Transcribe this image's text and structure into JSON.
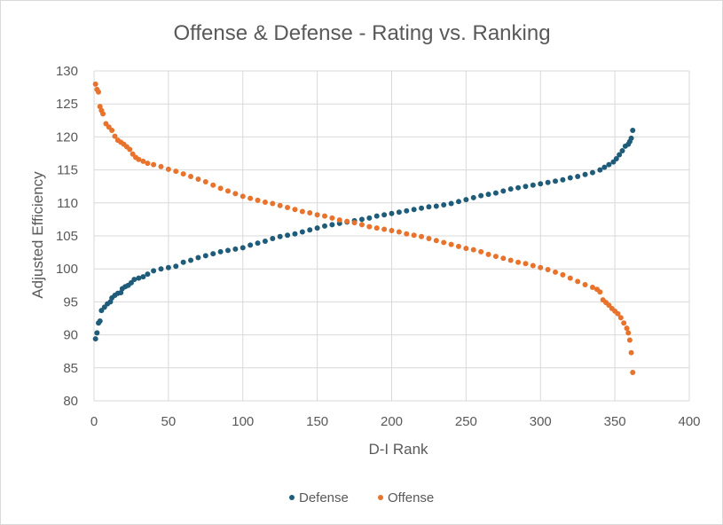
{
  "chart_data": {
    "type": "scatter",
    "title": "Offense & Defense - Rating vs. Ranking",
    "xlabel": "D-I Rank",
    "ylabel": "Adjusted Efficiency",
    "xlim": [
      0,
      400
    ],
    "ylim": [
      80,
      130
    ],
    "x_ticks": [
      0,
      50,
      100,
      150,
      200,
      250,
      300,
      350,
      400
    ],
    "y_ticks": [
      80,
      85,
      90,
      95,
      100,
      105,
      110,
      115,
      120,
      125,
      130
    ],
    "grid": true,
    "legend_position": "bottom",
    "series": [
      {
        "name": "Defense",
        "color": "#1f5c7a",
        "points": [
          [
            1,
            89.4
          ],
          [
            2,
            90.3
          ],
          [
            3,
            91.8
          ],
          [
            4,
            92.1
          ],
          [
            5,
            93.7
          ],
          [
            7,
            94.2
          ],
          [
            9,
            94.7
          ],
          [
            11,
            95.0
          ],
          [
            12,
            95.6
          ],
          [
            14,
            96.0
          ],
          [
            16,
            96.3
          ],
          [
            18,
            96.4
          ],
          [
            19,
            97.0
          ],
          [
            21,
            97.3
          ],
          [
            23,
            97.5
          ],
          [
            25,
            97.9
          ],
          [
            27,
            98.4
          ],
          [
            30,
            98.6
          ],
          [
            33,
            98.8
          ],
          [
            36,
            99.2
          ],
          [
            40,
            99.7
          ],
          [
            45,
            100.0
          ],
          [
            50,
            100.2
          ],
          [
            55,
            100.4
          ],
          [
            60,
            101.0
          ],
          [
            65,
            101.3
          ],
          [
            70,
            101.7
          ],
          [
            75,
            102.0
          ],
          [
            80,
            102.3
          ],
          [
            85,
            102.6
          ],
          [
            90,
            102.8
          ],
          [
            95,
            103.0
          ],
          [
            100,
            103.2
          ],
          [
            105,
            103.6
          ],
          [
            110,
            103.9
          ],
          [
            115,
            104.2
          ],
          [
            120,
            104.6
          ],
          [
            125,
            104.9
          ],
          [
            130,
            105.1
          ],
          [
            135,
            105.3
          ],
          [
            140,
            105.6
          ],
          [
            145,
            105.9
          ],
          [
            150,
            106.2
          ],
          [
            155,
            106.5
          ],
          [
            160,
            106.7
          ],
          [
            165,
            106.9
          ],
          [
            170,
            107.1
          ],
          [
            175,
            107.3
          ],
          [
            180,
            107.5
          ],
          [
            185,
            107.7
          ],
          [
            190,
            108.0
          ],
          [
            195,
            108.2
          ],
          [
            200,
            108.4
          ],
          [
            205,
            108.6
          ],
          [
            210,
            108.8
          ],
          [
            215,
            109.0
          ],
          [
            220,
            109.2
          ],
          [
            225,
            109.4
          ],
          [
            230,
            109.5
          ],
          [
            235,
            109.7
          ],
          [
            240,
            109.9
          ],
          [
            245,
            110.2
          ],
          [
            250,
            110.5
          ],
          [
            255,
            110.8
          ],
          [
            260,
            111.1
          ],
          [
            265,
            111.3
          ],
          [
            270,
            111.5
          ],
          [
            275,
            111.8
          ],
          [
            280,
            112.1
          ],
          [
            285,
            112.3
          ],
          [
            290,
            112.5
          ],
          [
            295,
            112.7
          ],
          [
            300,
            112.9
          ],
          [
            305,
            113.1
          ],
          [
            310,
            113.3
          ],
          [
            315,
            113.5
          ],
          [
            320,
            113.8
          ],
          [
            325,
            114.0
          ],
          [
            330,
            114.3
          ],
          [
            335,
            114.6
          ],
          [
            340,
            115.0
          ],
          [
            343,
            115.4
          ],
          [
            346,
            115.8
          ],
          [
            349,
            116.2
          ],
          [
            351,
            116.7
          ],
          [
            353,
            117.3
          ],
          [
            355,
            117.9
          ],
          [
            357,
            118.6
          ],
          [
            359,
            118.9
          ],
          [
            360,
            119.3
          ],
          [
            361,
            119.8
          ],
          [
            362,
            121.0
          ]
        ]
      },
      {
        "name": "Offense",
        "color": "#e7732c",
        "points": [
          [
            1,
            128.0
          ],
          [
            2,
            127.2
          ],
          [
            3,
            126.8
          ],
          [
            4,
            124.6
          ],
          [
            5,
            124.0
          ],
          [
            6,
            123.5
          ],
          [
            8,
            122.0
          ],
          [
            10,
            121.5
          ],
          [
            12,
            121.0
          ],
          [
            14,
            120.1
          ],
          [
            16,
            119.5
          ],
          [
            18,
            119.2
          ],
          [
            20,
            118.9
          ],
          [
            22,
            118.5
          ],
          [
            24,
            118.1
          ],
          [
            26,
            117.4
          ],
          [
            28,
            116.9
          ],
          [
            30,
            116.6
          ],
          [
            33,
            116.3
          ],
          [
            36,
            116.0
          ],
          [
            40,
            115.8
          ],
          [
            45,
            115.5
          ],
          [
            50,
            115.1
          ],
          [
            55,
            114.8
          ],
          [
            60,
            114.4
          ],
          [
            65,
            114.0
          ],
          [
            70,
            113.6
          ],
          [
            75,
            113.2
          ],
          [
            80,
            112.7
          ],
          [
            85,
            112.2
          ],
          [
            90,
            111.8
          ],
          [
            95,
            111.4
          ],
          [
            100,
            111.0
          ],
          [
            105,
            110.7
          ],
          [
            110,
            110.4
          ],
          [
            115,
            110.1
          ],
          [
            120,
            109.9
          ],
          [
            125,
            109.6
          ],
          [
            130,
            109.3
          ],
          [
            135,
            109.0
          ],
          [
            140,
            108.7
          ],
          [
            145,
            108.5
          ],
          [
            150,
            108.2
          ],
          [
            155,
            108.0
          ],
          [
            160,
            107.7
          ],
          [
            165,
            107.4
          ],
          [
            170,
            107.2
          ],
          [
            175,
            107.0
          ],
          [
            180,
            106.7
          ],
          [
            185,
            106.4
          ],
          [
            190,
            106.2
          ],
          [
            195,
            106.0
          ],
          [
            200,
            105.8
          ],
          [
            205,
            105.6
          ],
          [
            210,
            105.3
          ],
          [
            215,
            105.1
          ],
          [
            220,
            104.9
          ],
          [
            225,
            104.6
          ],
          [
            230,
            104.3
          ],
          [
            235,
            104.0
          ],
          [
            240,
            103.7
          ],
          [
            245,
            103.4
          ],
          [
            250,
            103.1
          ],
          [
            255,
            102.9
          ],
          [
            260,
            102.6
          ],
          [
            265,
            102.2
          ],
          [
            270,
            101.9
          ],
          [
            275,
            101.6
          ],
          [
            280,
            101.3
          ],
          [
            285,
            101.0
          ],
          [
            290,
            100.8
          ],
          [
            295,
            100.5
          ],
          [
            300,
            100.2
          ],
          [
            305,
            99.9
          ],
          [
            310,
            99.5
          ],
          [
            315,
            99.1
          ],
          [
            320,
            98.6
          ],
          [
            325,
            98.1
          ],
          [
            330,
            97.6
          ],
          [
            335,
            97.2
          ],
          [
            338,
            96.9
          ],
          [
            340,
            96.5
          ],
          [
            342,
            95.3
          ],
          [
            344,
            94.9
          ],
          [
            346,
            94.5
          ],
          [
            348,
            94.0
          ],
          [
            350,
            93.6
          ],
          [
            352,
            93.2
          ],
          [
            354,
            92.6
          ],
          [
            356,
            91.8
          ],
          [
            358,
            91.0
          ],
          [
            359,
            90.3
          ],
          [
            360,
            89.2
          ],
          [
            361,
            87.3
          ],
          [
            362,
            84.3
          ]
        ]
      }
    ]
  }
}
